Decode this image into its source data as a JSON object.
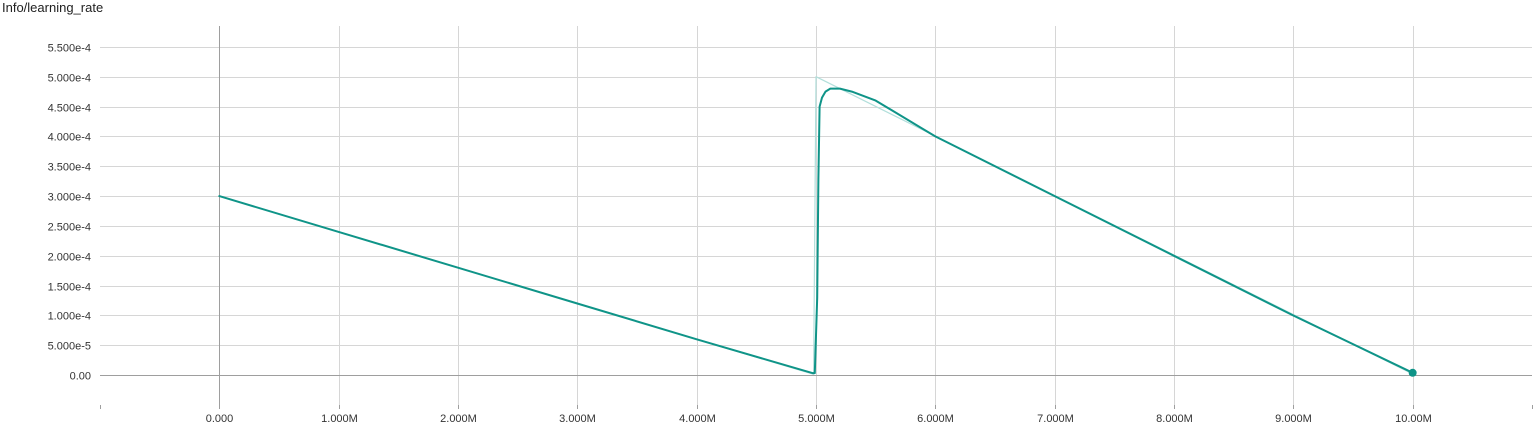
{
  "chart_title": "Info/learning_rate",
  "chart_data": {
    "type": "line",
    "title": "Info/learning_rate",
    "xlabel": "",
    "ylabel": "",
    "xlim": [
      -1000000,
      11000000
    ],
    "ylim": [
      -5e-05,
      0.000595
    ],
    "grid": true,
    "legend": "none",
    "x_ticks": [
      {
        "value": 0,
        "label": "0.000"
      },
      {
        "value": 1000000,
        "label": "1.000M"
      },
      {
        "value": 2000000,
        "label": "2.000M"
      },
      {
        "value": 3000000,
        "label": "3.000M"
      },
      {
        "value": 4000000,
        "label": "4.000M"
      },
      {
        "value": 5000000,
        "label": "5.000M"
      },
      {
        "value": 6000000,
        "label": "6.000M"
      },
      {
        "value": 7000000,
        "label": "7.000M"
      },
      {
        "value": 8000000,
        "label": "8.000M"
      },
      {
        "value": 9000000,
        "label": "9.000M"
      },
      {
        "value": 10000000,
        "label": "10.00M"
      }
    ],
    "y_ticks": [
      {
        "value": 0,
        "label": "0.00"
      },
      {
        "value": 5e-05,
        "label": "5.000e-5"
      },
      {
        "value": 0.0001,
        "label": "1.000e-4"
      },
      {
        "value": 0.00015,
        "label": "1.500e-4"
      },
      {
        "value": 0.0002,
        "label": "2.000e-4"
      },
      {
        "value": 0.00025,
        "label": "2.500e-4"
      },
      {
        "value": 0.0003,
        "label": "3.000e-4"
      },
      {
        "value": 0.00035,
        "label": "3.500e-4"
      },
      {
        "value": 0.0004,
        "label": "4.000e-4"
      },
      {
        "value": 0.00045,
        "label": "4.500e-4"
      },
      {
        "value": 0.0005,
        "label": "5.000e-4"
      },
      {
        "value": 0.00055,
        "label": "5.500e-4"
      }
    ],
    "series": [
      {
        "role": "raw",
        "color": "#b2dfdb",
        "x": [
          0,
          4980000,
          5000000,
          10000000
        ],
        "y": [
          0.0003,
          1.5e-06,
          0.0005,
          2e-06
        ]
      },
      {
        "role": "smoothed",
        "color": "#0f9488",
        "x": [
          0,
          1000000,
          2000000,
          3000000,
          4000000,
          4970000,
          4990000,
          5010000,
          5020000,
          5030000,
          5050000,
          5080000,
          5120000,
          5200000,
          5300000,
          5500000,
          6000000,
          7000000,
          8000000,
          9000000,
          10000000
        ],
        "y": [
          0.0003,
          0.00024,
          0.00018,
          0.00012,
          6e-05,
          3.5e-06,
          3.5e-06,
          0.00013,
          0.00033,
          0.00045,
          0.000465,
          0.000475,
          0.00048,
          0.00048,
          0.000475,
          0.00046,
          0.0004,
          0.0003,
          0.0002,
          0.0001,
          4e-06
        ]
      }
    ],
    "last_point": {
      "x": 10000000,
      "y": 4e-06
    }
  }
}
